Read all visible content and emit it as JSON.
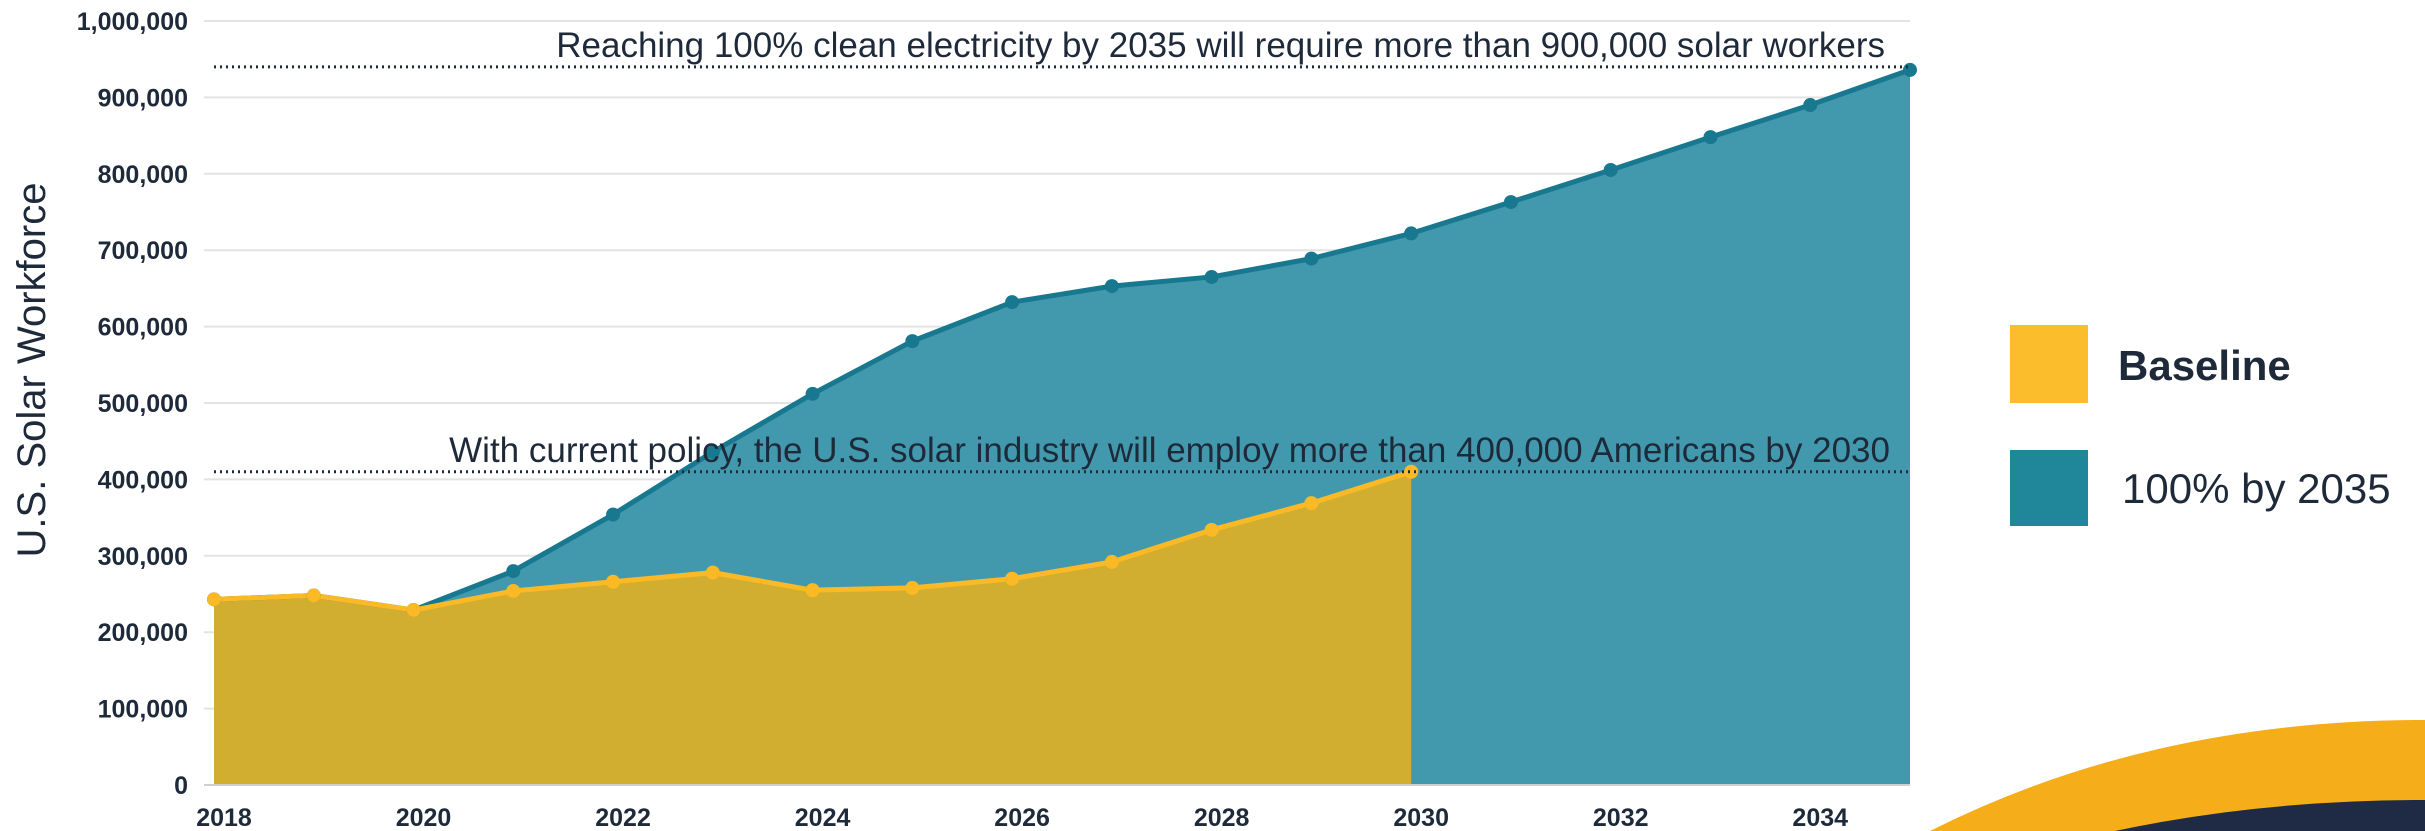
{
  "colors": {
    "baseline_area": "#D2AE30",
    "baseline_line": "#FBB925",
    "clean_area": "#4299AD",
    "clean_line": "#17788F",
    "legend_baseline": "#FBBD2C",
    "legend_clean": "#208699",
    "grid": "#e3e3e3",
    "text": "#1e2a3a",
    "deco_navy": "#1f2a44",
    "deco_yellow": "#f5ad19"
  },
  "chart_data": {
    "type": "area",
    "ylabel": "U.S. Solar Workforce",
    "xlabel": "",
    "ylim": [
      0,
      1000000
    ],
    "xlim": [
      2018,
      2035
    ],
    "yticks": [
      0,
      100000,
      200000,
      300000,
      400000,
      500000,
      600000,
      700000,
      800000,
      900000,
      1000000
    ],
    "ytick_labels": [
      "0",
      "100,000",
      "200,000",
      "300,000",
      "400,000",
      "500,000",
      "600,000",
      "700,000",
      "800,000",
      "900,000",
      "1,000,000"
    ],
    "xticks": [
      2018,
      2020,
      2022,
      2024,
      2026,
      2028,
      2030,
      2032,
      2034
    ],
    "xtick_labels": [
      "2018",
      "2020",
      "2022",
      "2024",
      "2026",
      "2028",
      "2030",
      "2032",
      "2034"
    ],
    "grid": true,
    "legend_position": "right",
    "series": [
      {
        "name": "Baseline",
        "x": [
          2018,
          2019,
          2020,
          2021,
          2022,
          2023,
          2024,
          2025,
          2026,
          2027,
          2028,
          2029,
          2030
        ],
        "values": [
          243000,
          248000,
          229000,
          254000,
          266000,
          278000,
          255000,
          258000,
          270000,
          292000,
          334000,
          369000,
          410000
        ]
      },
      {
        "name": "100% by 2035",
        "x": [
          2018,
          2019,
          2020,
          2021,
          2022,
          2023,
          2024,
          2025,
          2026,
          2027,
          2028,
          2029,
          2030,
          2031,
          2032,
          2033,
          2034,
          2035
        ],
        "values": [
          243000,
          248000,
          229000,
          280000,
          354000,
          436000,
          512000,
          581000,
          632000,
          653000,
          665000,
          689000,
          722000,
          763000,
          805000,
          848000,
          890000,
          936000
        ]
      }
    ],
    "annotations": [
      {
        "text": "Reaching 100% clean electricity by 2035 will require more than 900,000 solar workers",
        "y": 936000
      },
      {
        "text": "With current policy, the U.S. solar industry will employ more than 400,000 Americans by 2030",
        "y": 410000
      }
    ]
  }
}
